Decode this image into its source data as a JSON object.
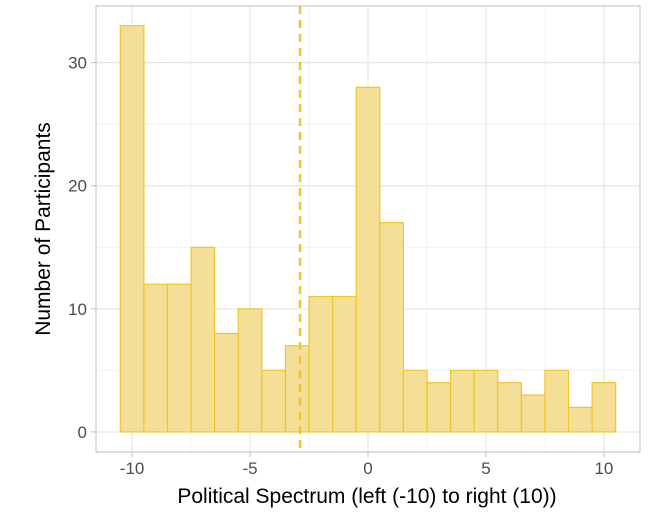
{
  "chart_data": {
    "type": "bar",
    "subtype": "histogram",
    "title": "",
    "xlabel": "Political Spectrum (left (-10) to right (10))",
    "ylabel": "Number of Participants",
    "x": [
      -10,
      -9,
      -8,
      -7,
      -6,
      -5,
      -4,
      -3,
      -2,
      -1,
      0,
      1,
      2,
      3,
      4,
      5,
      6,
      7,
      8,
      9,
      10
    ],
    "values": [
      33,
      12,
      12,
      15,
      8,
      10,
      5,
      7,
      11,
      11,
      28,
      17,
      5,
      4,
      5,
      5,
      4,
      3,
      5,
      2,
      4
    ],
    "bin_width": 1,
    "xlim": [
      -11.53,
      11.53
    ],
    "ylim": [
      -1.63,
      34.6
    ],
    "xticks": [
      -10,
      -5,
      0,
      5,
      10
    ],
    "yticks": [
      0,
      10,
      20,
      30
    ],
    "grid": true,
    "reference_line": {
      "x": -2.88,
      "style": "dashed"
    },
    "colors": {
      "fill": "#f5df96",
      "stroke": "#f0c52c",
      "line": "#f0c52c",
      "grid": "#e5e5e5",
      "border": "#bfbfbf"
    }
  }
}
